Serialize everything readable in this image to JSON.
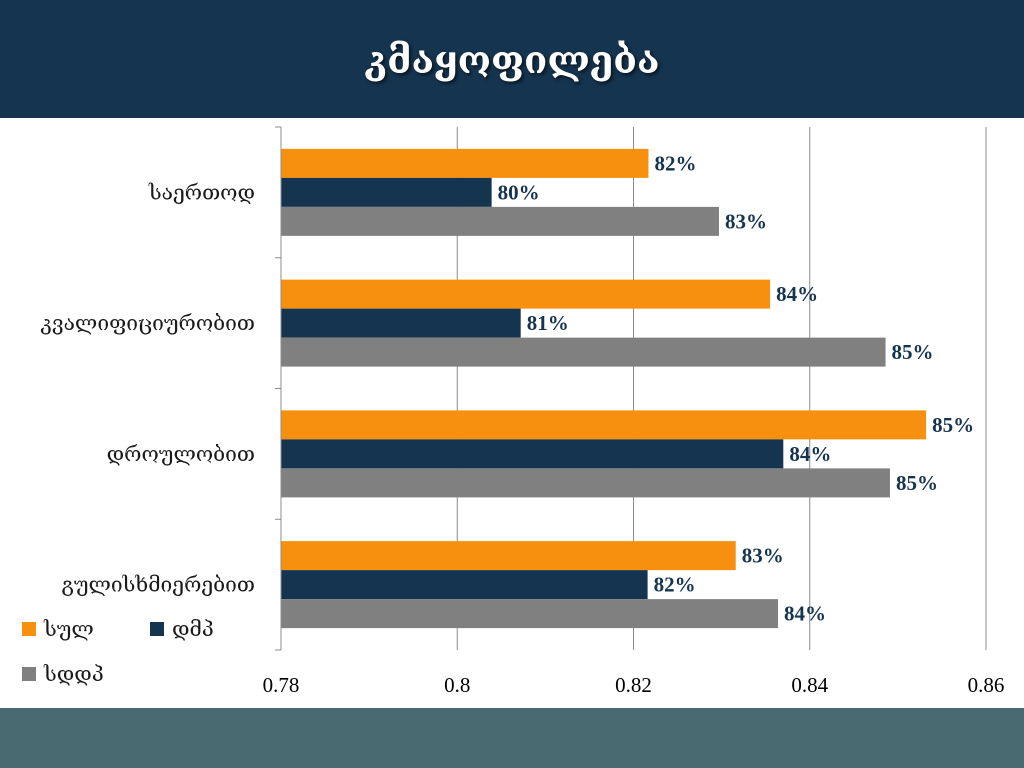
{
  "slide": {
    "title": "კმაყოფილება"
  },
  "colors": {
    "header_bg": "#15344f",
    "footer_bg": "#4a6a72",
    "series": [
      "#f7900e",
      "#15344f",
      "#808080"
    ],
    "label": "#15344f"
  },
  "chart_data": {
    "type": "bar",
    "orientation": "horizontal",
    "title": "",
    "xlabel": "",
    "ylabel": "",
    "xlim": [
      0.78,
      0.86
    ],
    "x_ticks": [
      "0.78",
      "0.8",
      "0.82",
      "0.84",
      "0.86"
    ],
    "x_tick_values": [
      0.78,
      0.8,
      0.82,
      0.84,
      0.86
    ],
    "grid": true,
    "legend_position": "bottom-left",
    "categories": [
      "საერთოდ",
      "კვალიფიციურობით",
      "დროულობით",
      "გულისხმიერებით"
    ],
    "series": [
      {
        "name": "სულ",
        "values": [
          0.8217,
          0.8355,
          0.8532,
          0.8316
        ],
        "labels": [
          "82%",
          "84%",
          "85%",
          "83%"
        ]
      },
      {
        "name": "დმპ",
        "values": [
          0.8039,
          0.8072,
          0.837,
          0.8216
        ],
        "labels": [
          "80%",
          "81%",
          "84%",
          "82%"
        ]
      },
      {
        "name": "სდდპ",
        "values": [
          0.8297,
          0.8486,
          0.8491,
          0.8364
        ],
        "labels": [
          "83%",
          "85%",
          "85%",
          "84%"
        ]
      }
    ]
  }
}
